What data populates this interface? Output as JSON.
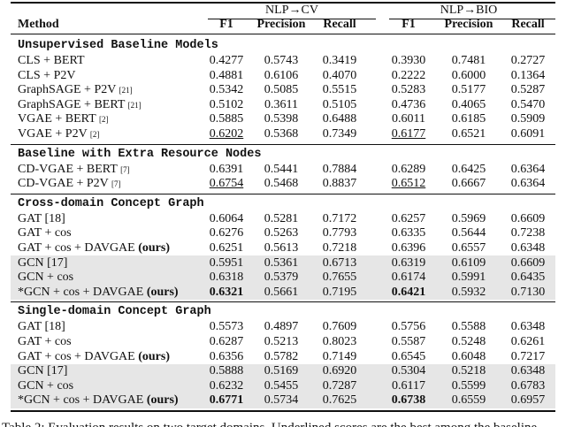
{
  "header": {
    "method": "Method",
    "groups": [
      "NLP→CV",
      "NLP→BIO"
    ],
    "columns": [
      "F1",
      "Precision",
      "Recall",
      "F1",
      "Precision",
      "Recall"
    ]
  },
  "sections": [
    {
      "title": "Unsupervised Baseline Models",
      "rows": [
        {
          "method": "CLS + BERT",
          "values": [
            "0.4277",
            "0.5743",
            "0.3419",
            "0.3930",
            "0.7481",
            "0.2727"
          ]
        },
        {
          "method": "CLS + P2V",
          "values": [
            "0.4881",
            "0.6106",
            "0.4070",
            "0.2222",
            "0.6000",
            "0.1364"
          ]
        },
        {
          "method": "GraphSAGE + P2V",
          "cite": "[21]",
          "values": [
            "0.5342",
            "0.5085",
            "0.5515",
            "0.5283",
            "0.5177",
            "0.5287"
          ]
        },
        {
          "method": "GraphSAGE + BERT",
          "cite": "[21]",
          "values": [
            "0.5102",
            "0.3611",
            "0.5105",
            "0.4736",
            "0.4065",
            "0.5470"
          ]
        },
        {
          "method": "VGAE + BERT",
          "cite": "[2]",
          "values": [
            "0.5885",
            "0.5398",
            "0.6488",
            "0.6011",
            "0.6185",
            "0.5909"
          ]
        },
        {
          "method": "VGAE + P2V",
          "cite": "[2]",
          "values": [
            "0.6202",
            "0.5368",
            "0.7349",
            "0.6177",
            "0.6521",
            "0.6091"
          ],
          "underline": [
            0,
            3
          ]
        }
      ]
    },
    {
      "title": "Baseline with Extra Resource Nodes",
      "rows": [
        {
          "method": "CD-VGAE + BERT",
          "cite": "[7]",
          "values": [
            "0.6391",
            "0.5441",
            "0.7884",
            "0.6289",
            "0.6425",
            "0.6364"
          ]
        },
        {
          "method": "CD-VGAE + P2V",
          "cite": "[7]",
          "values": [
            "0.6754",
            "0.5468",
            "0.8837",
            "0.6512",
            "0.6667",
            "0.6364"
          ],
          "underline": [
            0,
            3
          ]
        }
      ]
    },
    {
      "title": "Cross-domain Concept Graph",
      "rows": [
        {
          "method": "GAT",
          "cite": "[18]",
          "values": [
            "0.6064",
            "0.5281",
            "0.7172",
            "0.6257",
            "0.5969",
            "0.6609"
          ]
        },
        {
          "method": "GAT + cos",
          "values": [
            "0.6276",
            "0.5263",
            "0.7793",
            "0.6335",
            "0.5644",
            "0.7238"
          ]
        },
        {
          "method": "GAT + cos + DAVGAE",
          "ours": "(ours)",
          "values": [
            "0.6251",
            "0.5613",
            "0.7218",
            "0.6396",
            "0.6557",
            "0.6348"
          ]
        },
        {
          "method": "GCN",
          "cite": "[17]",
          "shaded": true,
          "values": [
            "0.5951",
            "0.5361",
            "0.6713",
            "0.6319",
            "0.6109",
            "0.6609"
          ]
        },
        {
          "method": "GCN + cos",
          "shaded": true,
          "values": [
            "0.6318",
            "0.5379",
            "0.7655",
            "0.6174",
            "0.5991",
            "0.6435"
          ]
        },
        {
          "method": "*GCN + cos + DAVGAE",
          "ours": "(ours)",
          "shaded": true,
          "values": [
            "0.6321",
            "0.5661",
            "0.7195",
            "0.6421",
            "0.5932",
            "0.7130"
          ],
          "bold": [
            0,
            3
          ]
        }
      ]
    },
    {
      "title": "Single-domain Concept Graph",
      "rows": [
        {
          "method": "GAT",
          "cite": "[18]",
          "values": [
            "0.5573",
            "0.4897",
            "0.7609",
            "0.5756",
            "0.5588",
            "0.6348"
          ]
        },
        {
          "method": "GAT + cos",
          "values": [
            "0.6287",
            "0.5213",
            "0.8023",
            "0.5587",
            "0.5248",
            "0.6261"
          ]
        },
        {
          "method": "GAT + cos + DAVGAE",
          "ours": "(ours)",
          "values": [
            "0.6356",
            "0.5782",
            "0.7149",
            "0.6545",
            "0.6048",
            "0.7217"
          ]
        },
        {
          "method": "GCN",
          "cite": "[17]",
          "shaded": true,
          "values": [
            "0.5888",
            "0.5169",
            "0.6920",
            "0.5304",
            "0.5218",
            "0.6348"
          ]
        },
        {
          "method": "GCN + cos",
          "shaded": true,
          "values": [
            "0.6232",
            "0.5455",
            "0.7287",
            "0.6117",
            "0.5599",
            "0.6783"
          ]
        },
        {
          "method": "*GCN + cos + DAVGAE",
          "ours": "(ours)",
          "shaded": true,
          "values": [
            "0.6771",
            "0.5734",
            "0.7625",
            "0.6738",
            "0.6559",
            "0.6957"
          ],
          "bold": [
            0,
            3
          ]
        }
      ]
    }
  ],
  "caption": "Table 2: Evaluation results on two target domains. Underlined scores are the best among the baseline"
}
